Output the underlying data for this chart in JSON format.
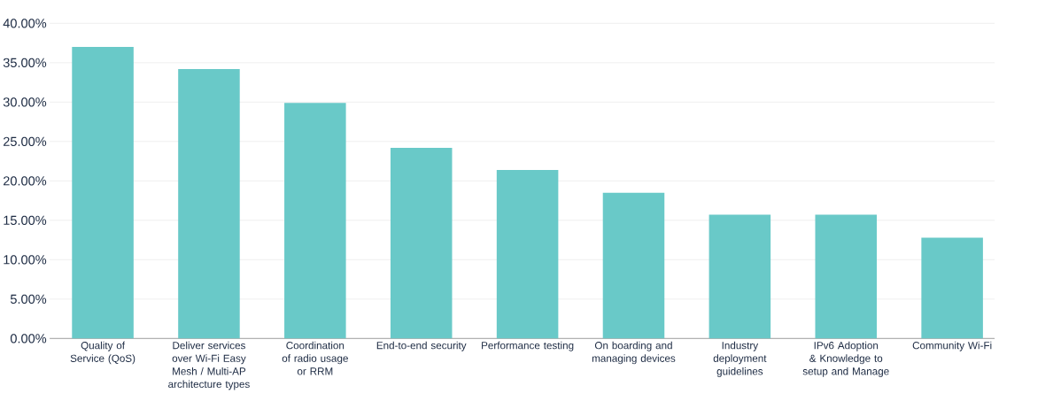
{
  "chart_data": {
    "type": "bar",
    "categories": [
      "Quality of Service (QoS)",
      "Deliver services over Wi-Fi Easy Mesh / Multi-AP architecture types",
      "Coordination of radio usage or RRM",
      "End-to-end security",
      "Performance testing",
      "On boarding and managing devices",
      "Industry deployment guidelines",
      "IPv6 Adoption & Knowledge to setup and Manage",
      "Community Wi-Fi"
    ],
    "values": [
      37.0,
      34.2,
      29.9,
      24.2,
      21.4,
      18.5,
      15.7,
      15.7,
      12.8
    ],
    "color": "#69c9c8",
    "ylim": [
      0,
      40
    ],
    "yticks": [
      {
        "value": 0,
        "label": "0.00%"
      },
      {
        "value": 5,
        "label": "5.00%"
      },
      {
        "value": 10,
        "label": "10.00%"
      },
      {
        "value": 15,
        "label": "15.00%"
      },
      {
        "value": 20,
        "label": "20.00%"
      },
      {
        "value": 25,
        "label": "25.00%"
      },
      {
        "value": 30,
        "label": "30.00%"
      },
      {
        "value": 35,
        "label": "35.00%"
      },
      {
        "value": 40,
        "label": "40.00%"
      }
    ],
    "grid": "y"
  }
}
